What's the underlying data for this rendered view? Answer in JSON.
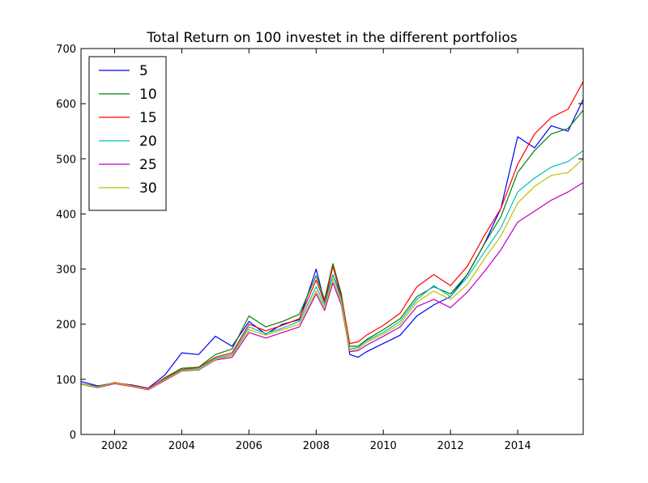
{
  "chart_data": {
    "type": "line",
    "title": "Total Return on 100 investet in the different portfolios",
    "xlabel": "",
    "ylabel": "",
    "xlim": [
      2001.0,
      2015.95
    ],
    "ylim": [
      0,
      700
    ],
    "x_ticks": [
      2002,
      2004,
      2006,
      2008,
      2010,
      2012,
      2014
    ],
    "y_ticks": [
      0,
      100,
      200,
      300,
      400,
      500,
      600,
      700
    ],
    "grid": false,
    "legend_position": "top-left",
    "x": [
      2001.0,
      2001.5,
      2002.0,
      2002.5,
      2003.0,
      2003.5,
      2004.0,
      2004.5,
      2005.0,
      2005.5,
      2006.0,
      2006.5,
      2007.0,
      2007.5,
      2008.0,
      2008.25,
      2008.5,
      2008.75,
      2009.0,
      2009.25,
      2009.5,
      2010.0,
      2010.5,
      2011.0,
      2011.5,
      2012.0,
      2012.5,
      2013.0,
      2013.5,
      2014.0,
      2014.5,
      2015.0,
      2015.5,
      2015.95
    ],
    "series": [
      {
        "name": "5",
        "color": "#0000ff",
        "values": [
          96,
          88,
          93,
          90,
          84,
          108,
          148,
          145,
          178,
          160,
          205,
          182,
          200,
          208,
          300,
          240,
          290,
          250,
          145,
          140,
          150,
          165,
          180,
          215,
          235,
          250,
          290,
          345,
          410,
          540,
          520,
          560,
          550,
          608
        ]
      },
      {
        "name": "10",
        "color": "#008000",
        "values": [
          92,
          87,
          94,
          88,
          82,
          103,
          120,
          122,
          145,
          155,
          215,
          195,
          205,
          218,
          288,
          245,
          310,
          255,
          160,
          160,
          172,
          190,
          210,
          250,
          268,
          255,
          290,
          345,
          395,
          475,
          515,
          545,
          555,
          588
        ]
      },
      {
        "name": "15",
        "color": "#ff0000",
        "values": [
          92,
          86,
          94,
          89,
          83,
          102,
          118,
          121,
          140,
          148,
          200,
          188,
          198,
          210,
          280,
          240,
          305,
          250,
          165,
          168,
          180,
          198,
          220,
          268,
          290,
          270,
          305,
          360,
          410,
          490,
          545,
          575,
          590,
          640
        ]
      },
      {
        "name": "20",
        "color": "#00bfbf",
        "values": [
          92,
          86,
          93,
          88,
          82,
          100,
          117,
          120,
          138,
          145,
          195,
          183,
          193,
          205,
          268,
          235,
          290,
          245,
          155,
          158,
          170,
          185,
          205,
          245,
          270,
          250,
          285,
          330,
          375,
          440,
          465,
          485,
          495,
          515
        ]
      },
      {
        "name": "25",
        "color": "#bf00bf",
        "values": [
          91,
          85,
          92,
          87,
          81,
          98,
          115,
          117,
          135,
          140,
          185,
          175,
          185,
          195,
          255,
          225,
          275,
          235,
          150,
          152,
          162,
          178,
          195,
          232,
          245,
          230,
          258,
          295,
          335,
          385,
          405,
          425,
          440,
          457
        ]
      },
      {
        "name": "30",
        "color": "#bfbf00",
        "values": [
          91,
          86,
          93,
          88,
          82,
          99,
          116,
          118,
          136,
          143,
          190,
          180,
          190,
          200,
          260,
          230,
          282,
          240,
          152,
          155,
          167,
          182,
          200,
          240,
          260,
          245,
          272,
          318,
          360,
          420,
          450,
          470,
          475,
          500
        ]
      }
    ]
  }
}
